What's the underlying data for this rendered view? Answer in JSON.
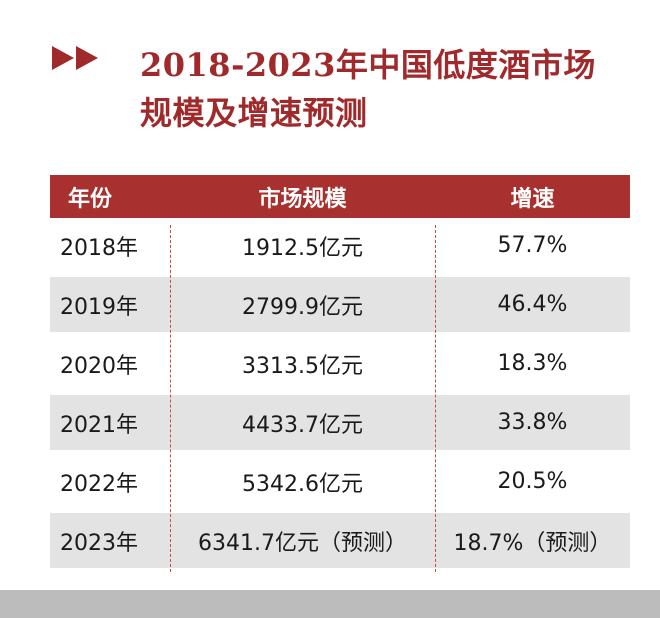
{
  "title": {
    "line1": "2018-2023年中国低度酒市场",
    "line2": "规模及增速预测"
  },
  "table": {
    "headers": [
      "年份",
      "市场规模",
      "增速"
    ],
    "rows": [
      {
        "year": "2018年",
        "size": "1912.5亿元",
        "growth": "57.7%"
      },
      {
        "year": "2019年",
        "size": "2799.9亿元",
        "growth": "46.4%"
      },
      {
        "year": "2020年",
        "size": "3313.5亿元",
        "growth": "18.3%"
      },
      {
        "year": "2021年",
        "size": "4433.7亿元",
        "growth": "33.8%"
      },
      {
        "year": "2022年",
        "size": "5342.6亿元",
        "growth": "20.5%"
      },
      {
        "year": "2023年",
        "size": "6341.7亿元（预测）",
        "growth": "18.7%（预测）"
      }
    ]
  },
  "colors": {
    "accent": "#a02a2b",
    "header_bg": "#a8302e",
    "stripe": "#e3e3e3"
  }
}
